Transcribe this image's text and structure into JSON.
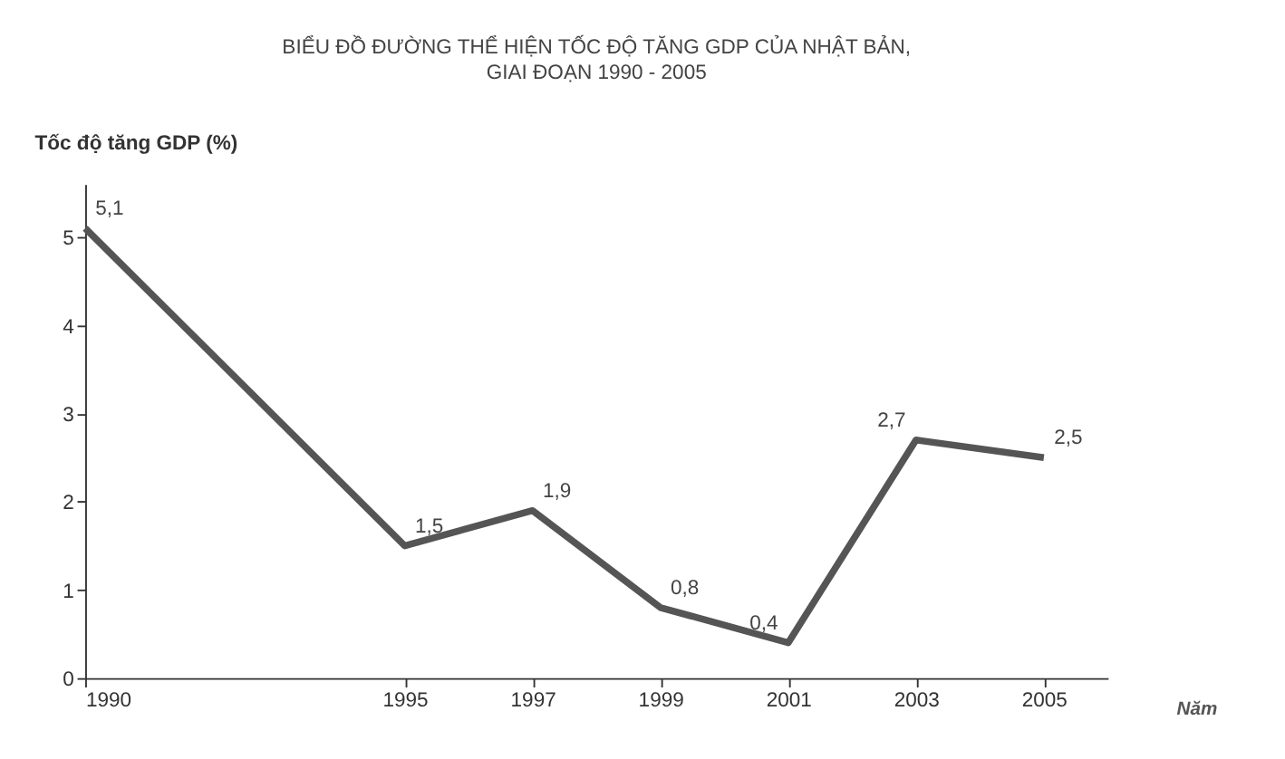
{
  "chart_data": {
    "type": "line",
    "title": "BIỂU ĐỒ ĐƯỜNG THỂ HIỆN TỐC ĐỘ TĂNG GDP CỦA NHẬT BẢN,",
    "subtitle": "GIAI ĐOẠN 1990 - 2005",
    "ylabel": "Tốc độ tăng GDP (%)",
    "xlabel": "Năm",
    "x": [
      1990,
      1995,
      1997,
      1999,
      2001,
      2003,
      2005
    ],
    "series": [
      {
        "color": "#555555",
        "values": [
          5.1,
          1.5,
          1.9,
          0.8,
          0.4,
          2.7,
          2.5
        ],
        "value_labels": [
          "5,1",
          "1,5",
          "1,9",
          "0,8",
          "0,4",
          "2,7",
          "2,5"
        ]
      }
    ],
    "xlim": [
      1990,
      2006
    ],
    "xticks": [
      1990,
      1995,
      1997,
      1999,
      2001,
      2003,
      2005
    ],
    "ylim": [
      0,
      5.6
    ],
    "yticks": [
      0,
      1,
      2,
      3,
      4,
      5
    ],
    "grid": false,
    "marker": "none",
    "line_style": "solid"
  }
}
